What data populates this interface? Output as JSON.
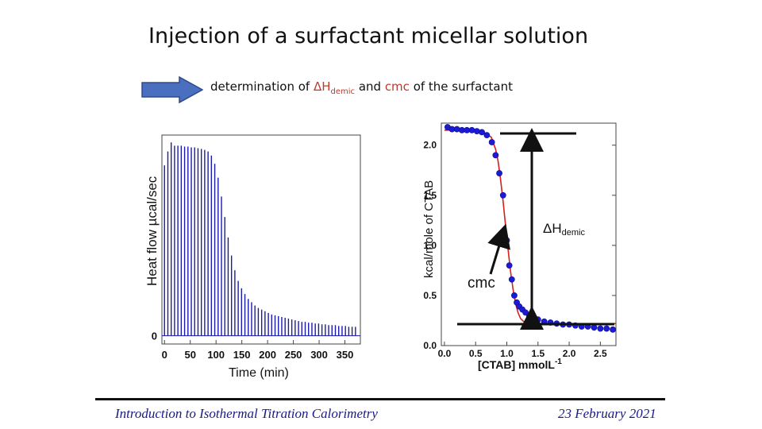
{
  "slide": {
    "title": "Injection of a surfactant micellar solution",
    "subtitle_prefix": "determination of ",
    "subtitle_delta_H": "ΔH",
    "subtitle_delta_sub": "demic",
    "subtitle_and": " and ",
    "subtitle_cmc": "cmc",
    "subtitle_suffix": " of the surfactant",
    "footer_left": "Introduction to Isothermal Titration Calorimetry",
    "footer_right": "23 February 2021",
    "colors": {
      "arrow_fill": "#4a6fbf",
      "accent_red": "#c0392b",
      "footer_text": "#1a1a80"
    }
  },
  "chart_data": [
    {
      "type": "bar",
      "title": "",
      "xlabel": "Time (min)",
      "ylabel": "Heat flow µcal/sec",
      "xlim": [
        -5,
        380
      ],
      "ylim": [
        -0.1,
        2.45
      ],
      "x_ticks": [
        0,
        50,
        100,
        150,
        200,
        250,
        300,
        350
      ],
      "y_ticks": [
        0
      ],
      "x_tick_labels": [
        "0",
        "50",
        "100",
        "150",
        "200",
        "250",
        "300",
        "350"
      ],
      "y_tick_labels": [
        "0"
      ],
      "series": [
        {
          "name": "injection peaks",
          "color": "#1a1aa8",
          "x": [
            0,
            6.5,
            13,
            19.5,
            26,
            32.5,
            39,
            45.5,
            52,
            58.5,
            65,
            71.5,
            78,
            84.5,
            91,
            97.5,
            104,
            110.5,
            117,
            123.5,
            130,
            136.5,
            143,
            149.5,
            156,
            162.5,
            169,
            175.5,
            182,
            188.5,
            195,
            201.5,
            208,
            214.5,
            221,
            227.5,
            234,
            240.5,
            247,
            253.5,
            260,
            266.5,
            273,
            279.5,
            286,
            292.5,
            299,
            305.5,
            312,
            318.5,
            325,
            331.5,
            338,
            344.5,
            351,
            357.5,
            364,
            370.5
          ],
          "values": [
            2.08,
            2.25,
            2.36,
            2.32,
            2.32,
            2.32,
            2.31,
            2.31,
            2.3,
            2.3,
            2.29,
            2.28,
            2.27,
            2.25,
            2.2,
            2.1,
            1.93,
            1.7,
            1.45,
            1.2,
            0.98,
            0.8,
            0.67,
            0.58,
            0.51,
            0.45,
            0.41,
            0.37,
            0.34,
            0.32,
            0.3,
            0.28,
            0.26,
            0.25,
            0.24,
            0.23,
            0.22,
            0.21,
            0.2,
            0.19,
            0.18,
            0.17,
            0.17,
            0.16,
            0.16,
            0.15,
            0.15,
            0.14,
            0.14,
            0.13,
            0.13,
            0.13,
            0.12,
            0.12,
            0.12,
            0.11,
            0.11,
            0.11
          ]
        }
      ]
    },
    {
      "type": "scatter",
      "title": "",
      "xlabel": "[CTAB] mmolL",
      "xlabel_superscript": "-1",
      "ylabel": "kcal/mole of CTAB",
      "xlim": [
        -0.05,
        2.75
      ],
      "ylim": [
        0,
        2.22
      ],
      "x_ticks": [
        0,
        0.5,
        1,
        1.5,
        2,
        2.5
      ],
      "y_ticks": [
        0,
        0.5,
        1,
        1.5,
        2
      ],
      "x_tick_labels": [
        "0.0",
        "0.5",
        "1.0",
        "1.5",
        "2.0",
        "2.5"
      ],
      "y_tick_labels": [
        "0.0",
        "0.5",
        "1.0",
        "1.5",
        "2.0"
      ],
      "series": [
        {
          "name": "experimental",
          "type": "scatter",
          "color": "#1a1ad8",
          "x": [
            0.05,
            0.12,
            0.2,
            0.28,
            0.36,
            0.44,
            0.52,
            0.6,
            0.68,
            0.76,
            0.82,
            0.88,
            0.94,
            1.0,
            1.04,
            1.08,
            1.12,
            1.16,
            1.2,
            1.25,
            1.3,
            1.36,
            1.42,
            1.5,
            1.6,
            1.7,
            1.8,
            1.9,
            2.0,
            2.1,
            2.2,
            2.3,
            2.4,
            2.5,
            2.6,
            2.7
          ],
          "y": [
            2.18,
            2.16,
            2.16,
            2.15,
            2.15,
            2.15,
            2.14,
            2.13,
            2.1,
            2.03,
            1.9,
            1.72,
            1.5,
            1.05,
            0.8,
            0.66,
            0.5,
            0.43,
            0.39,
            0.36,
            0.33,
            0.3,
            0.27,
            0.26,
            0.24,
            0.23,
            0.22,
            0.21,
            0.21,
            0.2,
            0.19,
            0.19,
            0.18,
            0.17,
            0.17,
            0.16
          ]
        },
        {
          "name": "fit",
          "type": "line",
          "color": "#d42020",
          "x": [
            0.0,
            0.3,
            0.6,
            0.75,
            0.82,
            0.86,
            0.9,
            0.94,
            0.98,
            1.02,
            1.06,
            1.1,
            1.14,
            1.18,
            1.22,
            1.27,
            1.34,
            1.45,
            1.7,
            2.0,
            2.4,
            2.75
          ],
          "y": [
            2.15,
            2.15,
            2.14,
            2.08,
            1.96,
            1.84,
            1.66,
            1.44,
            1.2,
            0.96,
            0.74,
            0.56,
            0.42,
            0.33,
            0.27,
            0.24,
            0.23,
            0.22,
            0.22,
            0.22,
            0.22,
            0.22
          ]
        }
      ],
      "annotations": [
        {
          "text_main": "ΔH",
          "text_sub": "demic"
        },
        {
          "text_main": "cmc"
        }
      ]
    }
  ]
}
